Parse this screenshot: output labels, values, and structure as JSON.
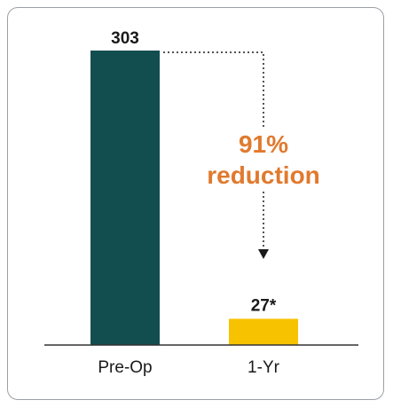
{
  "chart_data": {
    "type": "bar",
    "categories": [
      "Pre-Op",
      "1-Yr"
    ],
    "values": [
      303,
      27
    ],
    "value_labels": [
      "303",
      "27*"
    ],
    "colors": [
      "#124d50",
      "#f7c300"
    ],
    "annotation": {
      "line1": "91%",
      "line2": "reduction",
      "color": "#e07a2e"
    },
    "title": "",
    "xlabel": "",
    "ylabel": "",
    "ylim": [
      0,
      303
    ],
    "grid": false,
    "legend": "none"
  }
}
